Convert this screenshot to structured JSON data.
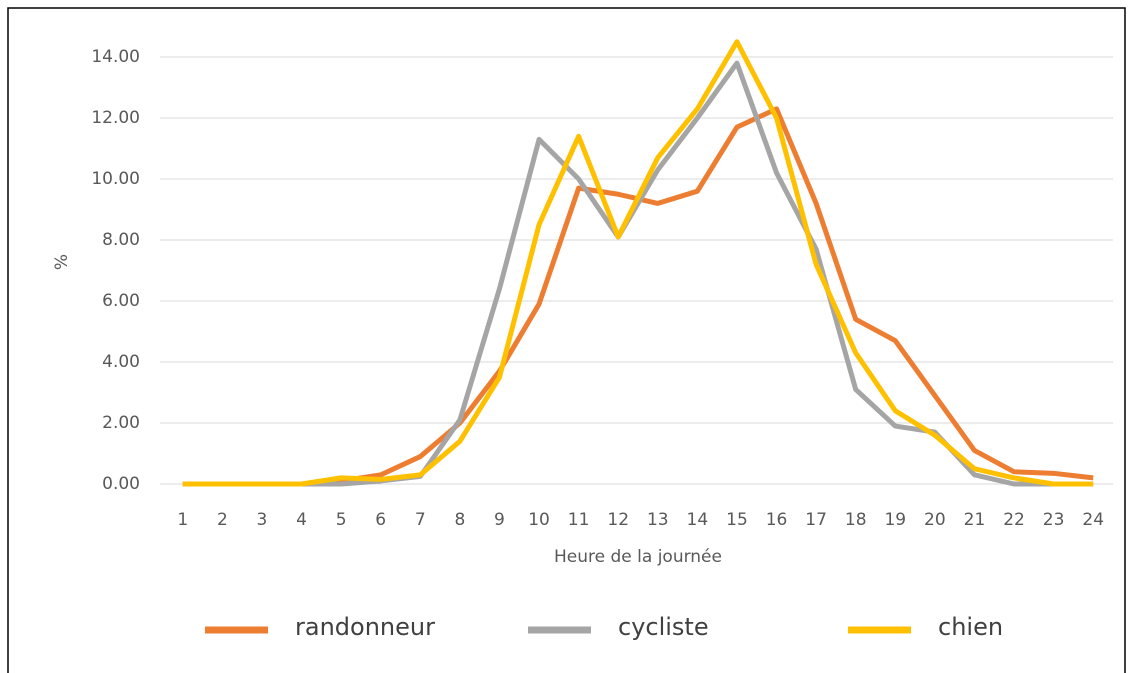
{
  "chart_data": {
    "type": "line",
    "y_label": "%",
    "x_label": "Heure de la journée",
    "categories": [
      "1",
      "2",
      "3",
      "4",
      "5",
      "6",
      "7",
      "8",
      "9",
      "10",
      "11",
      "12",
      "13",
      "14",
      "15",
      "16",
      "17",
      "18",
      "19",
      "20",
      "21",
      "22",
      "23",
      "24"
    ],
    "series": [
      {
        "name": "randonneur",
        "color": "#ed7d31",
        "values": [
          0,
          0,
          0,
          0,
          0.1,
          0.3,
          0.9,
          2.0,
          3.7,
          5.9,
          9.7,
          9.5,
          9.2,
          9.6,
          11.7,
          12.3,
          9.2,
          5.4,
          4.7,
          2.9,
          1.1,
          0.4,
          0.35,
          0.2
        ]
      },
      {
        "name": "cycliste",
        "color": "#a5a5a5",
        "values": [
          0,
          0,
          0,
          0,
          0,
          0.1,
          0.25,
          2.1,
          6.4,
          11.3,
          10.0,
          8.1,
          10.3,
          12.0,
          13.8,
          10.2,
          7.7,
          3.1,
          1.9,
          1.7,
          0.3,
          0,
          0,
          0
        ]
      },
      {
        "name": "chien",
        "color": "#ffc000",
        "values": [
          0,
          0,
          0,
          0,
          0.2,
          0.15,
          0.3,
          1.4,
          3.5,
          8.5,
          11.4,
          8.1,
          10.7,
          12.3,
          14.5,
          12.0,
          7.2,
          4.3,
          2.4,
          1.6,
          0.5,
          0.2,
          0,
          0
        ]
      }
    ],
    "ylim": [
      0,
      14
    ],
    "yticks": [
      {
        "value": 0,
        "label": "0.00"
      },
      {
        "value": 2,
        "label": "2.00"
      },
      {
        "value": 4,
        "label": "4.00"
      },
      {
        "value": 6,
        "label": "6.00"
      },
      {
        "value": 8,
        "label": "8.00"
      },
      {
        "value": 10,
        "label": "10.00"
      },
      {
        "value": 12,
        "label": "12.00"
      },
      {
        "value": 14,
        "label": "14.00"
      }
    ],
    "grid": true,
    "legend": "bottom"
  }
}
